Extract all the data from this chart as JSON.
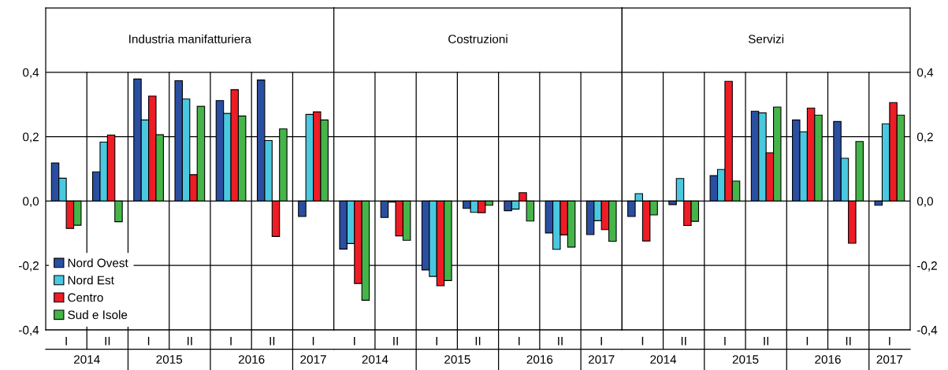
{
  "chart_data": [
    {
      "type": "bar",
      "title": "Industria manifatturiera",
      "categories": [
        "I",
        "II",
        "I",
        "II",
        "I",
        "II",
        "I"
      ],
      "annotations": [
        "2014",
        "2015",
        "2016",
        "2017"
      ],
      "ylim": [
        -0.4,
        0.6
      ],
      "yticks": [
        {
          "value": -0.4,
          "label": "-0,4"
        },
        {
          "value": -0.2,
          "label": "-0,2"
        },
        {
          "value": 0,
          "label": "0,0"
        },
        {
          "value": 0.2,
          "label": "0,2"
        },
        {
          "value": 0.4,
          "label": "0,4"
        }
      ],
      "grid": "y",
      "legend": "bottom left",
      "series": [
        {
          "name": "Nord Ovest",
          "color": "#2a4fa0",
          "values": [
            0.118,
            0.091,
            0.379,
            0.374,
            0.312,
            0.376,
            -0.048
          ]
        },
        {
          "name": "Nord Est",
          "color": "#4ac8e0",
          "values": [
            0.071,
            0.183,
            0.252,
            0.317,
            0.272,
            0.188,
            0.269
          ]
        },
        {
          "name": "Centro",
          "color": "#ee1c25",
          "values": [
            -0.085,
            0.205,
            0.326,
            0.082,
            0.346,
            -0.11,
            0.277
          ]
        },
        {
          "name": "Sud e Isole",
          "color": "#46b549",
          "values": [
            -0.075,
            -0.064,
            0.206,
            0.294,
            0.264,
            0.224,
            0.252
          ]
        }
      ]
    },
    {
      "type": "bar",
      "title": "Costruzioni",
      "categories": [
        "I",
        "II",
        "I",
        "II",
        "I",
        "II",
        "I"
      ],
      "annotations": [
        "2014",
        "2015",
        "2016",
        "2017"
      ],
      "ylim": [
        -0.4,
        0.6
      ],
      "yticks": [
        {
          "value": -0.4,
          "label": null
        },
        {
          "value": -0.2,
          "label": null
        },
        {
          "value": 0,
          "label": null
        },
        {
          "value": 0.2,
          "label": null
        },
        {
          "value": 0.4,
          "label": null
        }
      ],
      "grid": "y",
      "tick_labels": "x",
      "series": [
        {
          "color": "#2a4fa0",
          "values": [
            -0.149,
            -0.051,
            -0.214,
            -0.023,
            -0.03,
            -0.099,
            -0.104
          ]
        },
        {
          "color": "#4ac8e0",
          "values": [
            -0.132,
            -0.003,
            -0.234,
            -0.035,
            -0.025,
            -0.15,
            -0.061
          ]
        },
        {
          "color": "#ee1c25",
          "values": [
            -0.256,
            -0.108,
            -0.263,
            -0.036,
            0.026,
            -0.105,
            -0.089
          ]
        },
        {
          "color": "#46b549",
          "values": [
            -0.308,
            -0.122,
            -0.247,
            -0.013,
            -0.062,
            -0.143,
            -0.125
          ]
        }
      ]
    },
    {
      "type": "bar",
      "title": "Servizi",
      "categories": [
        "I",
        "II",
        "I",
        "II",
        "I",
        "II",
        "I"
      ],
      "annotations": [
        "2014",
        "2015",
        "2016",
        "2017"
      ],
      "ylim": [
        -0.4,
        0.6
      ],
      "yticks": [
        {
          "value": -0.4,
          "label": "-0,4"
        },
        {
          "value": -0.2,
          "label": "-0,2"
        },
        {
          "value": 0,
          "label": "0,0"
        },
        {
          "value": 0.2,
          "label": "0,2"
        },
        {
          "value": 0.4,
          "label": "0,4"
        }
      ],
      "grid": "y",
      "series": [
        {
          "color": "#2a4fa0",
          "values": [
            -0.048,
            -0.011,
            0.079,
            0.279,
            0.252,
            0.247,
            -0.013
          ]
        },
        {
          "color": "#4ac8e0",
          "values": [
            0.023,
            0.07,
            0.098,
            0.274,
            0.215,
            0.133,
            0.24
          ]
        },
        {
          "color": "#ee1c25",
          "values": [
            -0.124,
            -0.076,
            0.372,
            0.15,
            0.289,
            -0.131,
            0.306
          ]
        },
        {
          "color": "#46b549",
          "values": [
            -0.043,
            -0.063,
            0.062,
            0.292,
            0.267,
            0.185,
            0.267
          ]
        }
      ]
    }
  ]
}
